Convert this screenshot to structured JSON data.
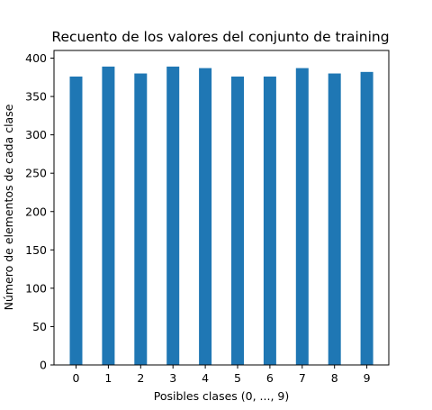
{
  "chart_data": {
    "type": "bar",
    "title": "Recuento de los valores del conjunto de training",
    "xlabel": "Posibles clases (0, ..., 9)",
    "ylabel": "Número de elementos de cada clase",
    "categories": [
      "0",
      "1",
      "2",
      "3",
      "4",
      "5",
      "6",
      "7",
      "8",
      "9"
    ],
    "values": [
      376,
      389,
      380,
      389,
      387,
      376,
      376,
      387,
      380,
      382
    ],
    "ylim": [
      0,
      410
    ],
    "yticks": [
      0,
      50,
      100,
      150,
      200,
      250,
      300,
      350,
      400
    ],
    "bar_color": "#1f77b4",
    "grid": false,
    "legend": "none"
  }
}
